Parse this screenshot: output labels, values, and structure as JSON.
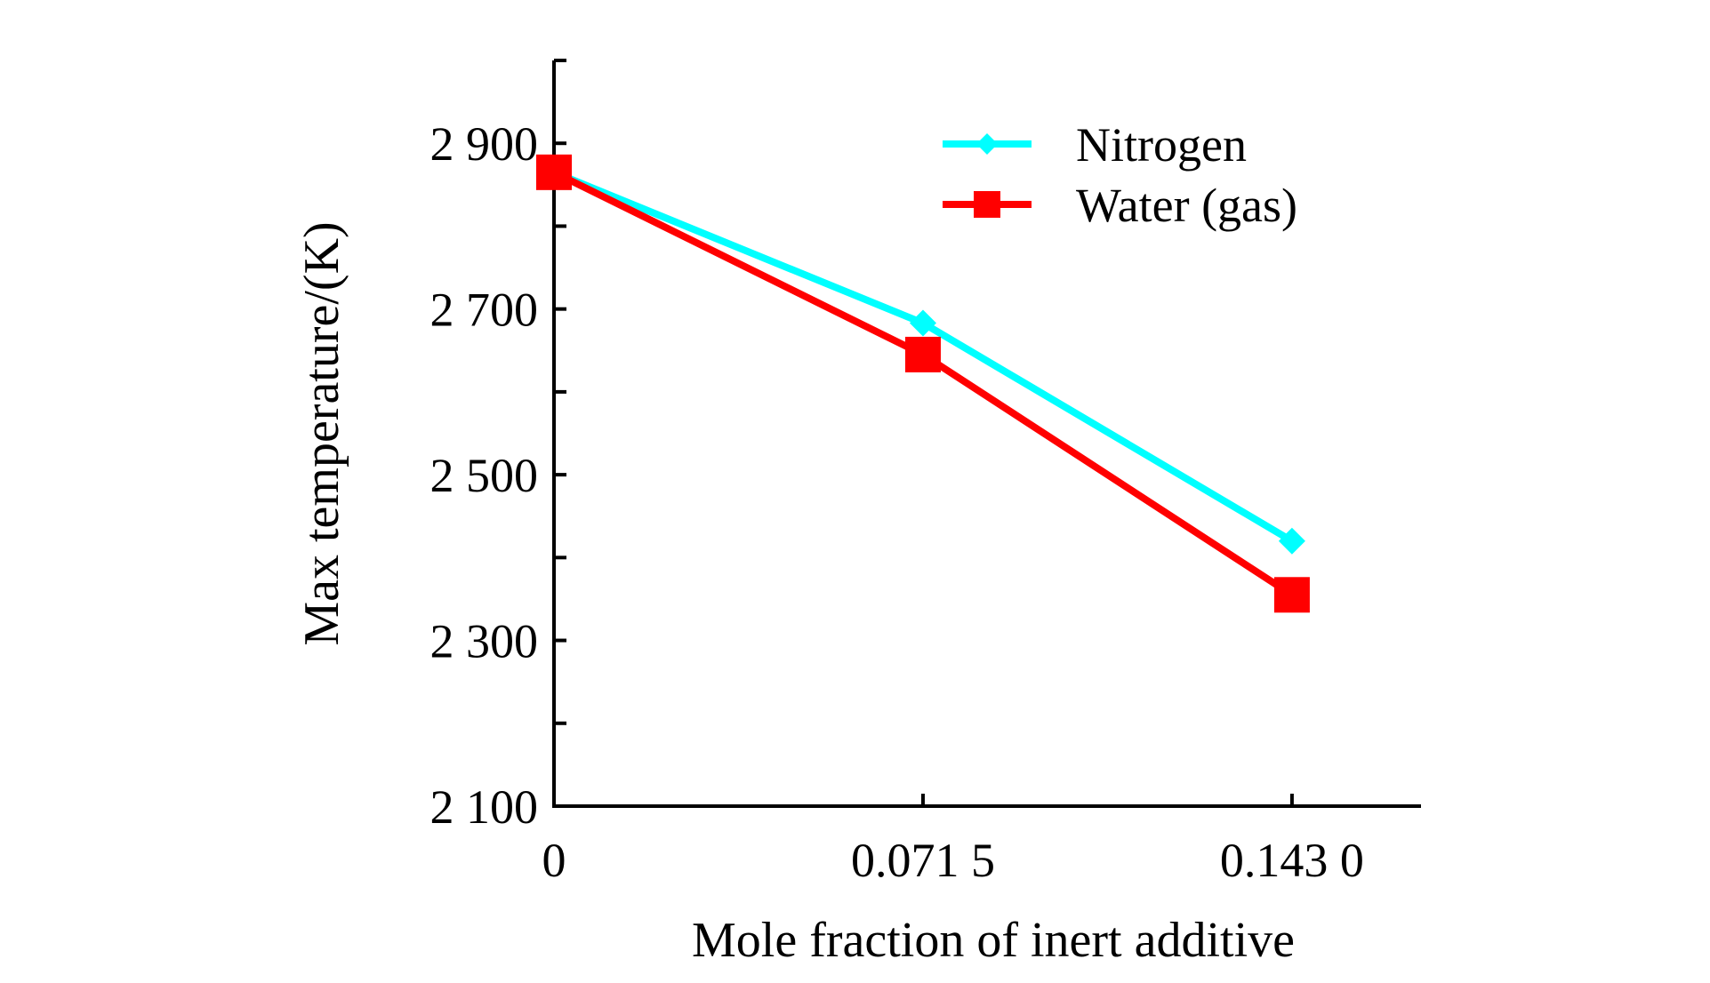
{
  "chart_data": {
    "type": "line",
    "title": "",
    "xlabel": "Mole fraction of inert additive",
    "ylabel": "Max temperature/(K)",
    "categories": [
      "0",
      "0.071 5",
      "0.143 0"
    ],
    "x": [
      0,
      0.0715,
      0.143
    ],
    "xlim": [
      0,
      0.168
    ],
    "ylim": [
      2100,
      3000
    ],
    "y_ticks": [
      2100,
      2300,
      2500,
      2700,
      2900
    ],
    "y_tick_labels": [
      "2 100",
      "2 300",
      "2 500",
      "2 700",
      "2 900"
    ],
    "y_minor_ticks": [
      2200,
      2400,
      2600,
      2800,
      3000
    ],
    "grid": false,
    "legend_position": "top-right",
    "series": [
      {
        "name": "Nitrogen",
        "values": [
          2865,
          2683,
          2420
        ],
        "color": "#00ffff",
        "marker": "diamond"
      },
      {
        "name": "Water (gas)",
        "values": [
          2865,
          2645,
          2355
        ],
        "color": "#ff0000",
        "marker": "square"
      }
    ]
  }
}
